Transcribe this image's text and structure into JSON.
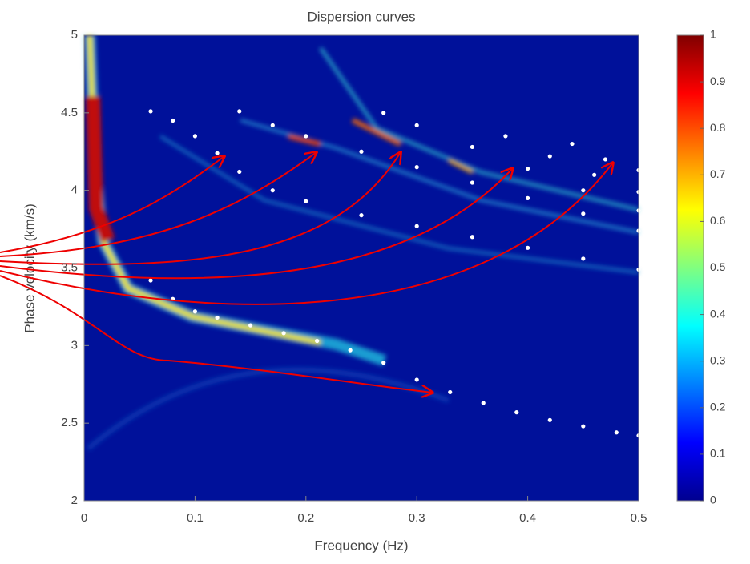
{
  "chart_data": {
    "type": "scatter",
    "title": "Dispersion curves",
    "x_label": "Frequency (Hz)",
    "y_label": "Phase velocity (km/s)",
    "xlim": [
      0,
      0.5
    ],
    "xticks": [
      0,
      0.1,
      0.2,
      0.3,
      0.4,
      0.5
    ],
    "ylim": [
      2,
      5
    ],
    "yticks": [
      2,
      2.5,
      3,
      3.5,
      4,
      4.5,
      5
    ],
    "colormap": "jet",
    "colorbar": {
      "lim": [
        0,
        1
      ],
      "ticks": [
        0,
        0.1,
        0.2,
        0.3,
        0.4,
        0.5,
        0.6,
        0.7,
        0.8,
        0.9,
        1
      ]
    },
    "series": [
      {
        "color": "#ffffff",
        "x": [
          0.06,
          0.08,
          0.1,
          0.12,
          0.15,
          0.18,
          0.21,
          0.24,
          0.27,
          0.3,
          0.33,
          0.36,
          0.39,
          0.42,
          0.45,
          0.48,
          0.5
        ],
        "values": [
          3.42,
          3.3,
          3.22,
          3.18,
          3.13,
          3.08,
          3.03,
          2.97,
          2.89,
          2.78,
          2.7,
          2.63,
          2.57,
          2.52,
          2.48,
          2.44,
          2.42
        ]
      },
      {
        "color": "#ffffff",
        "x": [
          0.06,
          0.08,
          0.1,
          0.12,
          0.14,
          0.17,
          0.2,
          0.25,
          0.3,
          0.35,
          0.4,
          0.45,
          0.5
        ],
        "values": [
          4.51,
          4.45,
          4.35,
          4.24,
          4.12,
          4.0,
          3.93,
          3.84,
          3.77,
          3.7,
          3.63,
          3.56,
          3.49
        ]
      },
      {
        "color": "#ffffff",
        "x": [
          0.14,
          0.17,
          0.2,
          0.25,
          0.3,
          0.35,
          0.4,
          0.45,
          0.5
        ],
        "values": [
          4.51,
          4.42,
          4.35,
          4.25,
          4.15,
          4.05,
          3.95,
          3.85,
          3.74
        ]
      },
      {
        "color": "#ffffff",
        "x": [
          0.27,
          0.3,
          0.35,
          0.4,
          0.45,
          0.5
        ],
        "values": [
          4.5,
          4.42,
          4.28,
          4.14,
          4.0,
          3.87
        ]
      },
      {
        "color": "#ffffff",
        "x": [
          0.38,
          0.42,
          0.46,
          0.5
        ],
        "values": [
          4.35,
          4.22,
          4.1,
          3.99
        ]
      },
      {
        "color": "#ffffff",
        "x": [
          0.44,
          0.47,
          0.5
        ],
        "values": [
          4.3,
          4.2,
          4.13
        ]
      }
    ]
  }
}
